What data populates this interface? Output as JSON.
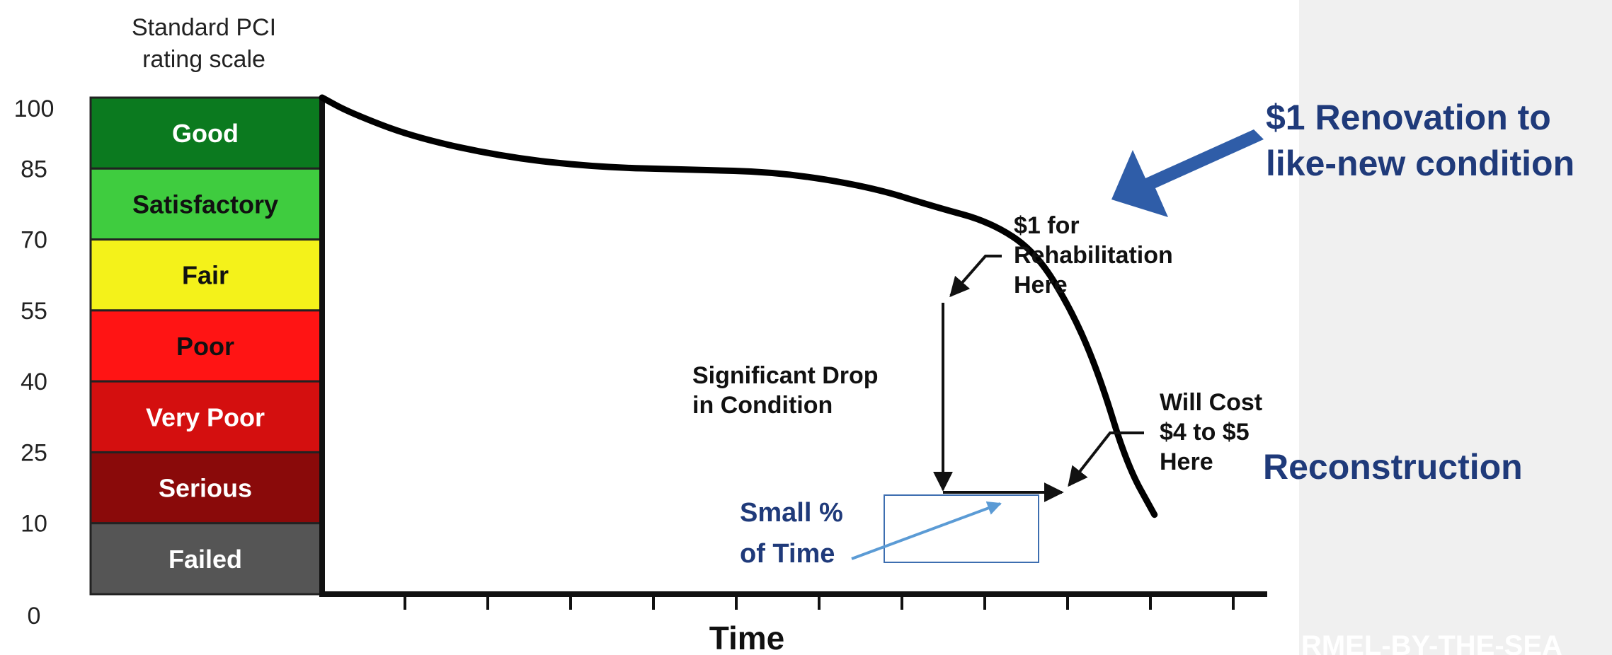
{
  "chart_data": {
    "type": "line",
    "title_lines": [
      "Standard PCI",
      "rating scale"
    ],
    "xlabel": "Time",
    "ylabel": "",
    "ylim": [
      0,
      100
    ],
    "y_ticks": [
      "100",
      "85",
      "70",
      "55",
      "40",
      "25",
      "10",
      "0"
    ],
    "y_tick_values": [
      100,
      85,
      70,
      55,
      40,
      25,
      10,
      0
    ],
    "x_ticks_count": 11,
    "rating_bands": [
      {
        "label": "Good",
        "from": 85,
        "to": 100,
        "color": "#0b7a1f",
        "text_color": "#ffffff"
      },
      {
        "label": "Satisfactory",
        "from": 70,
        "to": 85,
        "color": "#3fcc3f",
        "text_color": "#111111"
      },
      {
        "label": "Fair",
        "from": 55,
        "to": 70,
        "color": "#f4f21a",
        "text_color": "#111111"
      },
      {
        "label": "Poor",
        "from": 40,
        "to": 55,
        "color": "#ff1414",
        "text_color": "#111111"
      },
      {
        "label": "Very Poor",
        "from": 25,
        "to": 40,
        "color": "#d40f0f",
        "text_color": "#ffffff"
      },
      {
        "label": "Serious",
        "from": 10,
        "to": 25,
        "color": "#8a0a0a",
        "text_color": "#ffffff"
      },
      {
        "label": "Failed",
        "from": 0,
        "to": 10,
        "color": "#555555",
        "text_color": "#ffffff"
      }
    ],
    "series": [
      {
        "x": [
          0,
          0.3,
          1.0,
          2.0,
          3.0,
          4.0,
          5.0,
          6.0,
          6.7,
          7.3,
          7.8,
          8.2,
          8.5,
          8.8,
          9.1
        ],
        "y": [
          100,
          97,
          92,
          88,
          86,
          85.5,
          85,
          82,
          78,
          75,
          69,
          57,
          44,
          26,
          16
        ]
      }
    ],
    "annotations": {
      "rehab": [
        "$1 for",
        "Rehabilitation",
        "Here"
      ],
      "drop": [
        "Significant Drop",
        "in Condition"
      ],
      "cost": [
        "Will Cost",
        "$4 to $5",
        "Here"
      ]
    }
  },
  "callouts": {
    "renovation_lines": [
      "$1 Renovation to",
      "like-new condition"
    ],
    "reconstruction": "Reconstruction",
    "small_time_lines": [
      "Small %",
      "of Time"
    ],
    "footer": "RMEL-BY-THE-SEA"
  },
  "colors": {
    "navy_text": "#1f3a7a",
    "arrow_blue": "#2f5da8",
    "light_arrow": "#5b9bd5",
    "box_stroke": "#3d6eb0"
  }
}
